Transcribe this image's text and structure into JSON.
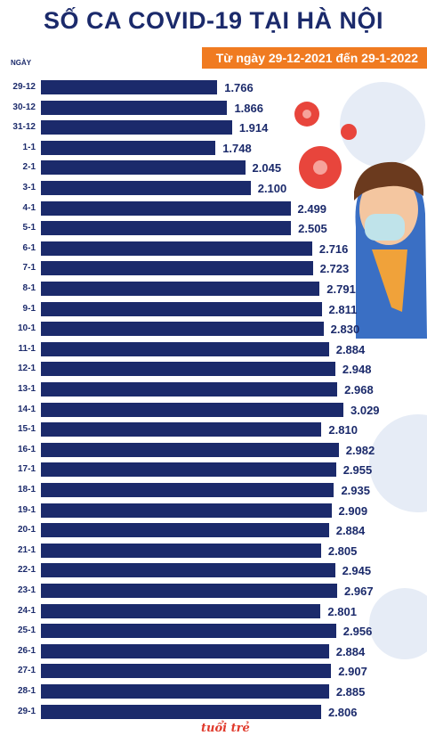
{
  "title": "SỐ CA COVID-19 TẠI HÀ NỘI",
  "subtitle": "Từ ngày 29-12-2021 đến 29-1-2022",
  "logo": "tuổi trẻ",
  "chart_data": {
    "type": "bar",
    "orientation": "horizontal",
    "title": "SỐ CA COVID-19 TẠI HÀ NỘI",
    "subtitle": "Từ ngày 29-12-2021 đến 29-1-2022",
    "ylabel": "NGÀY",
    "categories": [
      "29-12",
      "30-12",
      "31-12",
      "1-1",
      "2-1",
      "3-1",
      "4-1",
      "5-1",
      "6-1",
      "7-1",
      "8-1",
      "9-1",
      "10-1",
      "11-1",
      "12-1",
      "13-1",
      "14-1",
      "15-1",
      "16-1",
      "17-1",
      "18-1",
      "19-1",
      "20-1",
      "21-1",
      "22-1",
      "23-1",
      "24-1",
      "25-1",
      "26-1",
      "27-1",
      "28-1",
      "29-1"
    ],
    "values": [
      1766,
      1866,
      1914,
      1748,
      2045,
      2100,
      2499,
      2505,
      2716,
      2723,
      2791,
      2811,
      2830,
      2884,
      2948,
      2968,
      3029,
      2810,
      2982,
      2955,
      2935,
      2909,
      2884,
      2805,
      2945,
      2967,
      2801,
      2956,
      2884,
      2907,
      2885,
      2806
    ],
    "labels": [
      "1.766",
      "1.866",
      "1.914",
      "1.748",
      "2.045",
      "2.100",
      "2.499",
      "2.505",
      "2.716",
      "2.723",
      "2.791",
      "2.811",
      "2.830",
      "2.884",
      "2.948",
      "2.968",
      "3.029",
      "2.810",
      "2.982",
      "2.955",
      "2.935",
      "2.909",
      "2.884",
      "2.805",
      "2.945",
      "2.967",
      "2.801",
      "2.956",
      "2.884",
      "2.907",
      "2.885",
      "2.806"
    ],
    "colors": {
      "bar": "#1b2a6b",
      "accent": "#f07b21",
      "virus": "#e8453c"
    },
    "grid": false,
    "legend": "none"
  }
}
